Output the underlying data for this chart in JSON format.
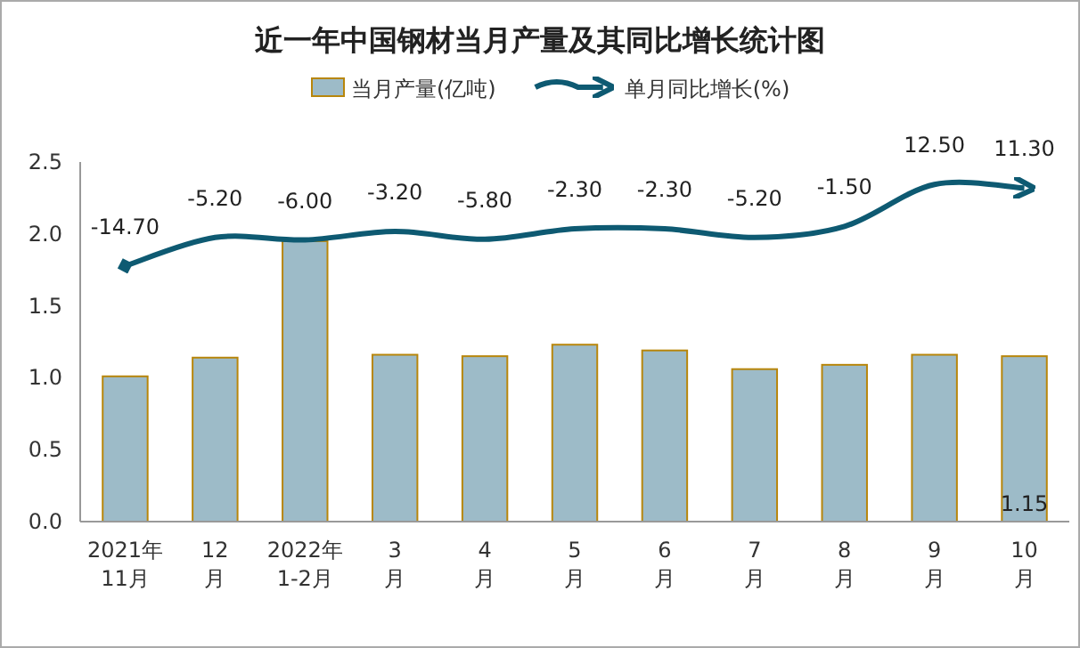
{
  "chart_data": {
    "type": "bar",
    "title": "近一年中国钢材当月产量及其同比增长统计图",
    "categories": [
      "2021年\n11月",
      "12\n月",
      "2022年\n1-2月",
      "3\n月",
      "4\n月",
      "5\n月",
      "6\n月",
      "7\n月",
      "8\n月",
      "9\n月",
      "10\n月"
    ],
    "series": [
      {
        "name": "当月产量(亿吨)",
        "color": "#9dbbc8",
        "values": [
          1.01,
          1.14,
          1.95,
          1.16,
          1.15,
          1.23,
          1.19,
          1.06,
          1.09,
          1.16,
          1.15
        ],
        "value_labels": [
          null,
          null,
          null,
          null,
          null,
          null,
          null,
          null,
          null,
          null,
          "1.15"
        ]
      },
      {
        "name": "单月同比增长(%)",
        "type": "line",
        "axis": "y2",
        "color": "#0e5a72",
        "values": [
          -14.7,
          -5.2,
          -6.0,
          -3.2,
          -5.8,
          -2.3,
          -2.3,
          -5.2,
          -1.5,
          12.5,
          11.3
        ],
        "value_labels": [
          "-14.70",
          "-5.20",
          "-6.00",
          "-3.20",
          "-5.80",
          "-2.30",
          "-2.30",
          "-5.20",
          "-1.50",
          "12.50",
          "11.30"
        ]
      }
    ],
    "ylim": [
      0,
      2.5
    ],
    "yticks": [
      {
        "value": 0,
        "label": "0.0"
      },
      {
        "value": 0.5,
        "label": "0.5"
      },
      {
        "value": 1,
        "label": "1.0"
      },
      {
        "value": 1.5,
        "label": "1.5"
      },
      {
        "value": 2,
        "label": "2.0"
      },
      {
        "value": 2.5,
        "label": "2.5"
      }
    ],
    "y2lim": [
      -100,
      20
    ],
    "legend": "top",
    "grid": false
  }
}
